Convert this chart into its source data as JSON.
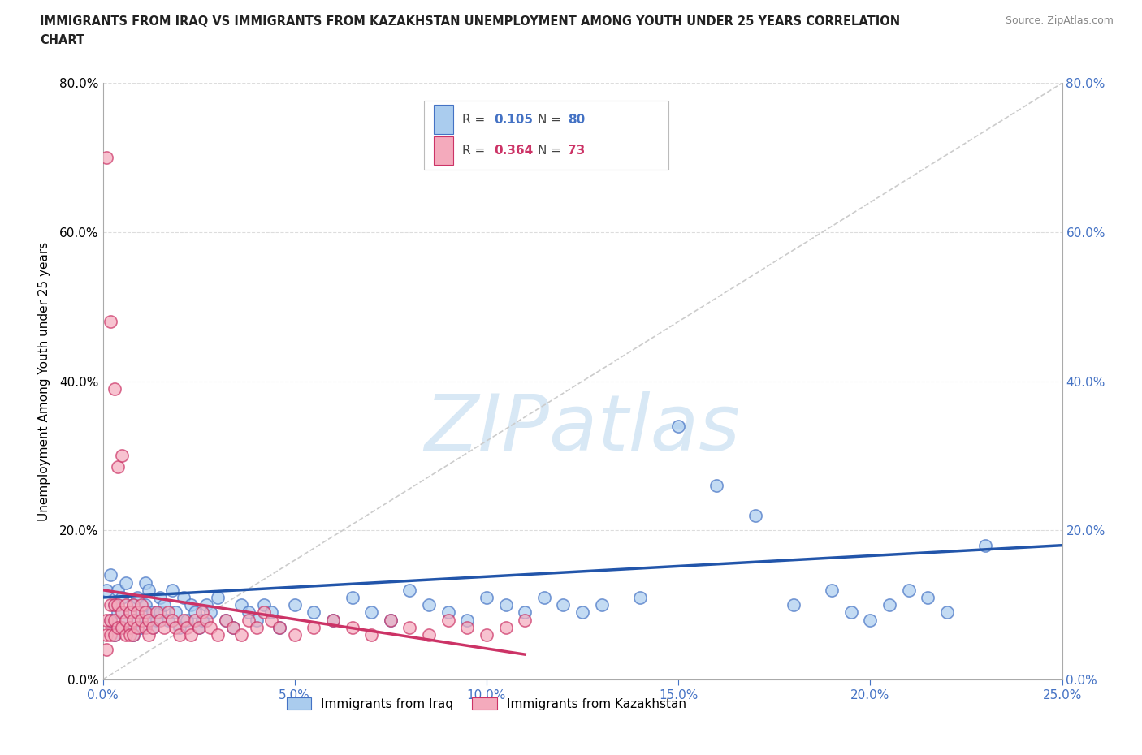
{
  "title_line1": "IMMIGRANTS FROM IRAQ VS IMMIGRANTS FROM KAZAKHSTAN UNEMPLOYMENT AMONG YOUTH UNDER 25 YEARS CORRELATION",
  "title_line2": "CHART",
  "source": "Source: ZipAtlas.com",
  "ylabel": "Unemployment Among Youth under 25 years",
  "xlim": [
    0.0,
    0.25
  ],
  "ylim": [
    0.0,
    0.8
  ],
  "xticks": [
    0.0,
    0.05,
    0.1,
    0.15,
    0.2,
    0.25
  ],
  "yticks": [
    0.0,
    0.2,
    0.4,
    0.6,
    0.8
  ],
  "iraq_fill": "#AACCEE",
  "iraq_edge": "#4472C4",
  "kaz_fill": "#F4AABC",
  "kaz_edge": "#CC3366",
  "trendline_iraq_color": "#2255AA",
  "trendline_kaz_color": "#CC3366",
  "diag_color": "#CCCCCC",
  "grid_color": "#DDDDDD",
  "right_tick_color": "#4472C4",
  "iraq_R": "0.105",
  "iraq_N": "80",
  "kaz_R": "0.364",
  "kaz_N": "73",
  "watermark": "ZIPatlas",
  "watermark_color": "#D8E8F5",
  "legend_iraq": "Immigrants from Iraq",
  "legend_kaz": "Immigrants from Kazakhstan",
  "background": "#FFFFFF",
  "iraq_x": [
    0.001,
    0.002,
    0.002,
    0.003,
    0.003,
    0.004,
    0.004,
    0.005,
    0.005,
    0.006,
    0.006,
    0.007,
    0.007,
    0.008,
    0.008,
    0.009,
    0.009,
    0.01,
    0.01,
    0.011,
    0.011,
    0.012,
    0.012,
    0.013,
    0.013,
    0.014,
    0.015,
    0.015,
    0.016,
    0.017,
    0.018,
    0.019,
    0.02,
    0.021,
    0.022,
    0.023,
    0.024,
    0.025,
    0.026,
    0.027,
    0.028,
    0.03,
    0.032,
    0.034,
    0.036,
    0.038,
    0.04,
    0.042,
    0.044,
    0.046,
    0.05,
    0.055,
    0.06,
    0.065,
    0.07,
    0.075,
    0.08,
    0.085,
    0.09,
    0.095,
    0.1,
    0.105,
    0.11,
    0.115,
    0.12,
    0.125,
    0.13,
    0.14,
    0.15,
    0.16,
    0.17,
    0.18,
    0.19,
    0.195,
    0.2,
    0.205,
    0.21,
    0.215,
    0.22,
    0.23
  ],
  "iraq_y": [
    0.12,
    0.08,
    0.14,
    0.06,
    0.1,
    0.09,
    0.12,
    0.07,
    0.11,
    0.08,
    0.13,
    0.09,
    0.07,
    0.06,
    0.1,
    0.11,
    0.08,
    0.09,
    0.07,
    0.1,
    0.13,
    0.08,
    0.12,
    0.09,
    0.07,
    0.08,
    0.11,
    0.09,
    0.1,
    0.08,
    0.12,
    0.09,
    0.07,
    0.11,
    0.08,
    0.1,
    0.09,
    0.07,
    0.08,
    0.1,
    0.09,
    0.11,
    0.08,
    0.07,
    0.1,
    0.09,
    0.08,
    0.1,
    0.09,
    0.07,
    0.1,
    0.09,
    0.08,
    0.11,
    0.09,
    0.08,
    0.12,
    0.1,
    0.09,
    0.08,
    0.11,
    0.1,
    0.09,
    0.11,
    0.1,
    0.09,
    0.1,
    0.11,
    0.34,
    0.26,
    0.22,
    0.1,
    0.12,
    0.09,
    0.08,
    0.1,
    0.12,
    0.11,
    0.09,
    0.18
  ],
  "kaz_x": [
    0.001,
    0.001,
    0.001,
    0.001,
    0.002,
    0.002,
    0.002,
    0.002,
    0.003,
    0.003,
    0.003,
    0.003,
    0.004,
    0.004,
    0.004,
    0.005,
    0.005,
    0.005,
    0.006,
    0.006,
    0.006,
    0.007,
    0.007,
    0.007,
    0.008,
    0.008,
    0.008,
    0.009,
    0.009,
    0.01,
    0.01,
    0.011,
    0.011,
    0.012,
    0.012,
    0.013,
    0.014,
    0.015,
    0.016,
    0.017,
    0.018,
    0.019,
    0.02,
    0.021,
    0.022,
    0.023,
    0.024,
    0.025,
    0.026,
    0.027,
    0.028,
    0.03,
    0.032,
    0.034,
    0.036,
    0.038,
    0.04,
    0.042,
    0.044,
    0.046,
    0.05,
    0.055,
    0.06,
    0.065,
    0.07,
    0.075,
    0.08,
    0.085,
    0.09,
    0.095,
    0.1,
    0.105,
    0.11
  ],
  "kaz_y": [
    0.7,
    0.08,
    0.06,
    0.04,
    0.48,
    0.1,
    0.08,
    0.06,
    0.39,
    0.1,
    0.08,
    0.06,
    0.285,
    0.1,
    0.07,
    0.3,
    0.09,
    0.07,
    0.1,
    0.08,
    0.06,
    0.09,
    0.07,
    0.06,
    0.1,
    0.08,
    0.06,
    0.09,
    0.07,
    0.1,
    0.08,
    0.09,
    0.07,
    0.08,
    0.06,
    0.07,
    0.09,
    0.08,
    0.07,
    0.09,
    0.08,
    0.07,
    0.06,
    0.08,
    0.07,
    0.06,
    0.08,
    0.07,
    0.09,
    0.08,
    0.07,
    0.06,
    0.08,
    0.07,
    0.06,
    0.08,
    0.07,
    0.09,
    0.08,
    0.07,
    0.06,
    0.07,
    0.08,
    0.07,
    0.06,
    0.08,
    0.07,
    0.06,
    0.08,
    0.07,
    0.06,
    0.07,
    0.08
  ]
}
